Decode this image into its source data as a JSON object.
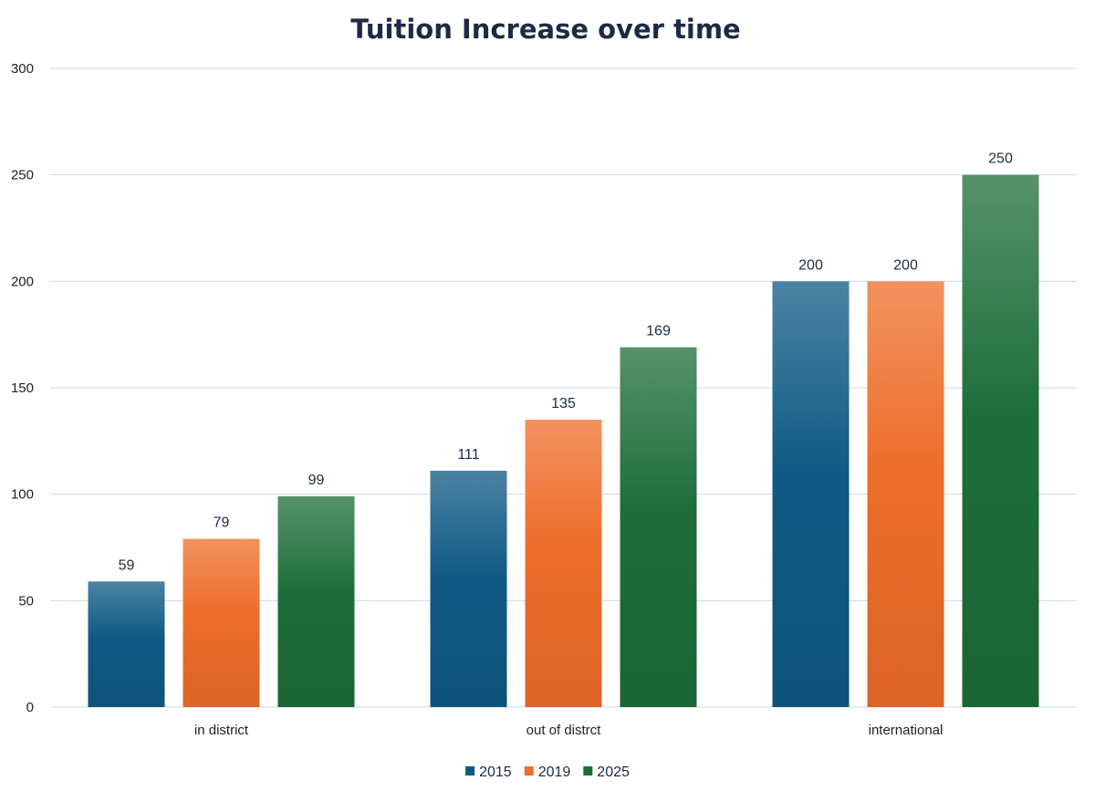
{
  "chart_data": {
    "type": "bar",
    "title": "Tuition Increase over time",
    "xlabel": "",
    "ylabel": "",
    "categories": [
      "in district",
      "out of distrct",
      "international"
    ],
    "series": [
      {
        "name": "2015",
        "values": [
          59,
          111,
          200
        ],
        "color": "#0f5a84"
      },
      {
        "name": "2019",
        "values": [
          79,
          135,
          200
        ],
        "color": "#ee6d2a"
      },
      {
        "name": "2025",
        "values": [
          99,
          169,
          250
        ],
        "color": "#1e6e3a"
      }
    ],
    "ylim": [
      0,
      300
    ],
    "yticks": [
      0,
      50,
      100,
      150,
      200,
      250,
      300
    ],
    "grid": true,
    "legend": "bottom-center",
    "data_labels": true
  }
}
